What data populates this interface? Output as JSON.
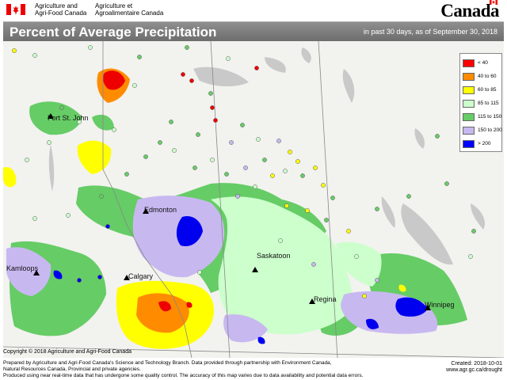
{
  "header": {
    "agency_en_line1": "Agriculture and",
    "agency_en_line2": "Agri-Food Canada",
    "agency_fr_line1": "Agriculture et",
    "agency_fr_line2": "Agroalimentaire Canada",
    "wordmark": "Canada"
  },
  "titlebar": {
    "title": "Percent of Average Precipitation",
    "subtitle": "in past 30 days, as of September 30, 2018"
  },
  "cities": [
    {
      "id": "fort-st-john",
      "name": "Fort St. John"
    },
    {
      "id": "edmonton",
      "name": "Edmonton"
    },
    {
      "id": "saskatoon",
      "name": "Saskatoon"
    },
    {
      "id": "kamloops",
      "name": "Kamloops"
    },
    {
      "id": "calgary",
      "name": "Calgary"
    },
    {
      "id": "regina",
      "name": "Regina"
    },
    {
      "id": "winnipeg",
      "name": "Winnipeg"
    }
  ],
  "legend": [
    {
      "label": "< 40",
      "color": "#ff0000"
    },
    {
      "label": "40 to 60",
      "color": "#ff8c00"
    },
    {
      "label": "60 to 85",
      "color": "#ffff00"
    },
    {
      "label": "85 to 115",
      "color": "#ccffcc"
    },
    {
      "label": "115 to 150",
      "color": "#66cc66"
    },
    {
      "label": "150 to 200",
      "color": "#c8b8f0"
    },
    {
      "label": "> 200",
      "color": "#0000ff"
    }
  ],
  "footer": {
    "copyright": "Copyright © 2018 Agriculture and Agri-Food Canada",
    "prepared_line1": "Prepared by Agriculture and Agri-Food Canada's Science and Technology Branch. Data provided through partnership with Environment Canada,",
    "prepared_line2": "Natural Resources Canada, Provincial and private agencies.",
    "disclaimer": "Produced using near real-time data that has undergone some quality control. The accuracy of this map varies due to data availability and potential data errors.",
    "created": "Created: 2018-10-01",
    "url": "www.agr.gc.ca/drought"
  }
}
